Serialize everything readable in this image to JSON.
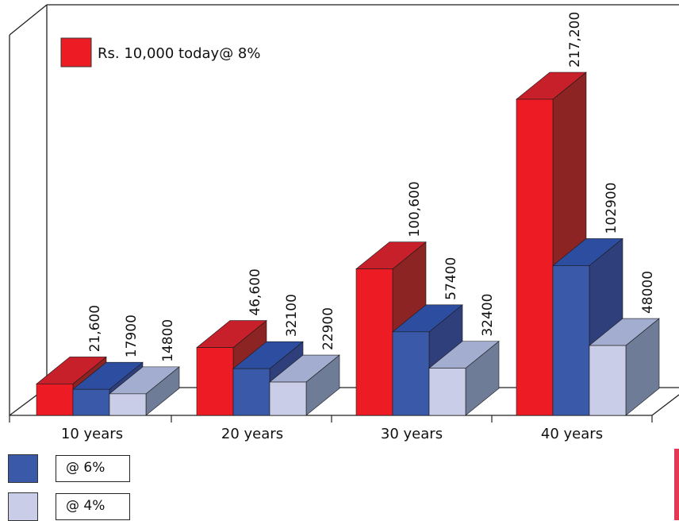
{
  "chart_data": {
    "type": "bar",
    "categories": [
      "10 years",
      "20 years",
      "30 years",
      "40 years"
    ],
    "series": [
      {
        "name": "Rs. 10,000 today@ 8%",
        "values": [
          21600,
          46600,
          100600,
          217200
        ],
        "labels": [
          "21,600",
          "46,600",
          "100,600",
          "217,200"
        ],
        "color": "#ed1c24",
        "top_color": "#c8202a",
        "side_color": "#8b2422"
      },
      {
        "name": "@ 6%",
        "values": [
          17900,
          32100,
          57400,
          102900
        ],
        "labels": [
          "17900",
          "32100",
          "57400",
          "102900"
        ],
        "color": "#3a59a8",
        "top_color": "#2c4da0",
        "side_color": "#2e3f7c"
      },
      {
        "name": "@ 4%",
        "values": [
          14800,
          22900,
          32400,
          48000
        ],
        "labels": [
          "14800",
          "22900",
          "32400",
          "48000"
        ],
        "color": "#c9cde8",
        "top_color": "#a3add0",
        "side_color": "#6e7c98"
      }
    ],
    "grid": false,
    "legend": [
      "top-left",
      "bottom-left"
    ],
    "projection": "3d"
  }
}
